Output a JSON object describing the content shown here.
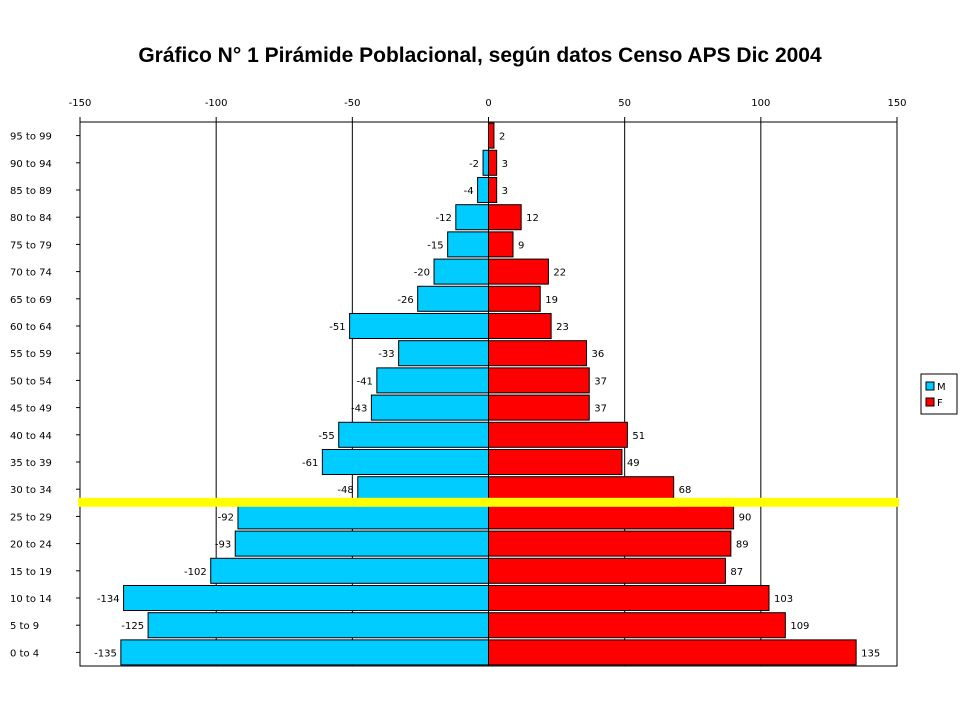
{
  "chart_data": {
    "type": "bar",
    "orientation": "horizontal",
    "title": "Gráfico N° 1 Pirámide Poblacional, según datos Censo APS Dic 2004",
    "xlim": [
      -150,
      150
    ],
    "x_ticks": [
      "-150",
      "-100",
      "-50",
      "0",
      "50",
      "100",
      "150"
    ],
    "grid": true,
    "legend_position": "right",
    "categories": [
      "95 to 99",
      "90 to 94",
      "85 to 89",
      "80 to 84",
      "75 to 79",
      "70 to 74",
      "65 to 69",
      "60 to 64",
      "55 to 59",
      "50 to 54",
      "45 to 49",
      "40 to 44",
      "35 to 39",
      "30 to 34",
      "25 to 29",
      "20 to 24",
      "15 to 19",
      "10 to 14",
      "5 to 9",
      "0 to 4"
    ],
    "series": [
      {
        "name": "M",
        "color": "#00ccff",
        "values": [
          0,
          -2,
          -4,
          -12,
          -15,
          -20,
          -26,
          -51,
          -33,
          -41,
          -43,
          -55,
          -61,
          -48,
          -92,
          -93,
          -102,
          -134,
          -125,
          -135
        ],
        "labels": [
          "",
          "-2",
          "-4",
          "-12",
          "-15",
          "-20",
          "-26",
          "-51",
          "-33",
          "-41",
          "-43",
          "-55",
          "-61",
          "-48",
          "-92",
          "-93",
          "-102",
          "-134",
          "-125",
          "-135"
        ]
      },
      {
        "name": "F",
        "color": "#ff0000",
        "values": [
          2,
          3,
          3,
          12,
          9,
          22,
          19,
          23,
          36,
          37,
          37,
          51,
          49,
          68,
          90,
          89,
          87,
          103,
          109,
          135
        ],
        "labels": [
          "2",
          "3",
          "3",
          "12",
          "9",
          "22",
          "19",
          "23",
          "36",
          "37",
          "37",
          "51",
          "49",
          "68",
          "90",
          "89",
          "87",
          "103",
          "109",
          "135"
        ]
      }
    ],
    "highlight_line": {
      "between_categories": [
        "30 to 34",
        "25 to 29"
      ],
      "color": "#ffff00"
    }
  }
}
